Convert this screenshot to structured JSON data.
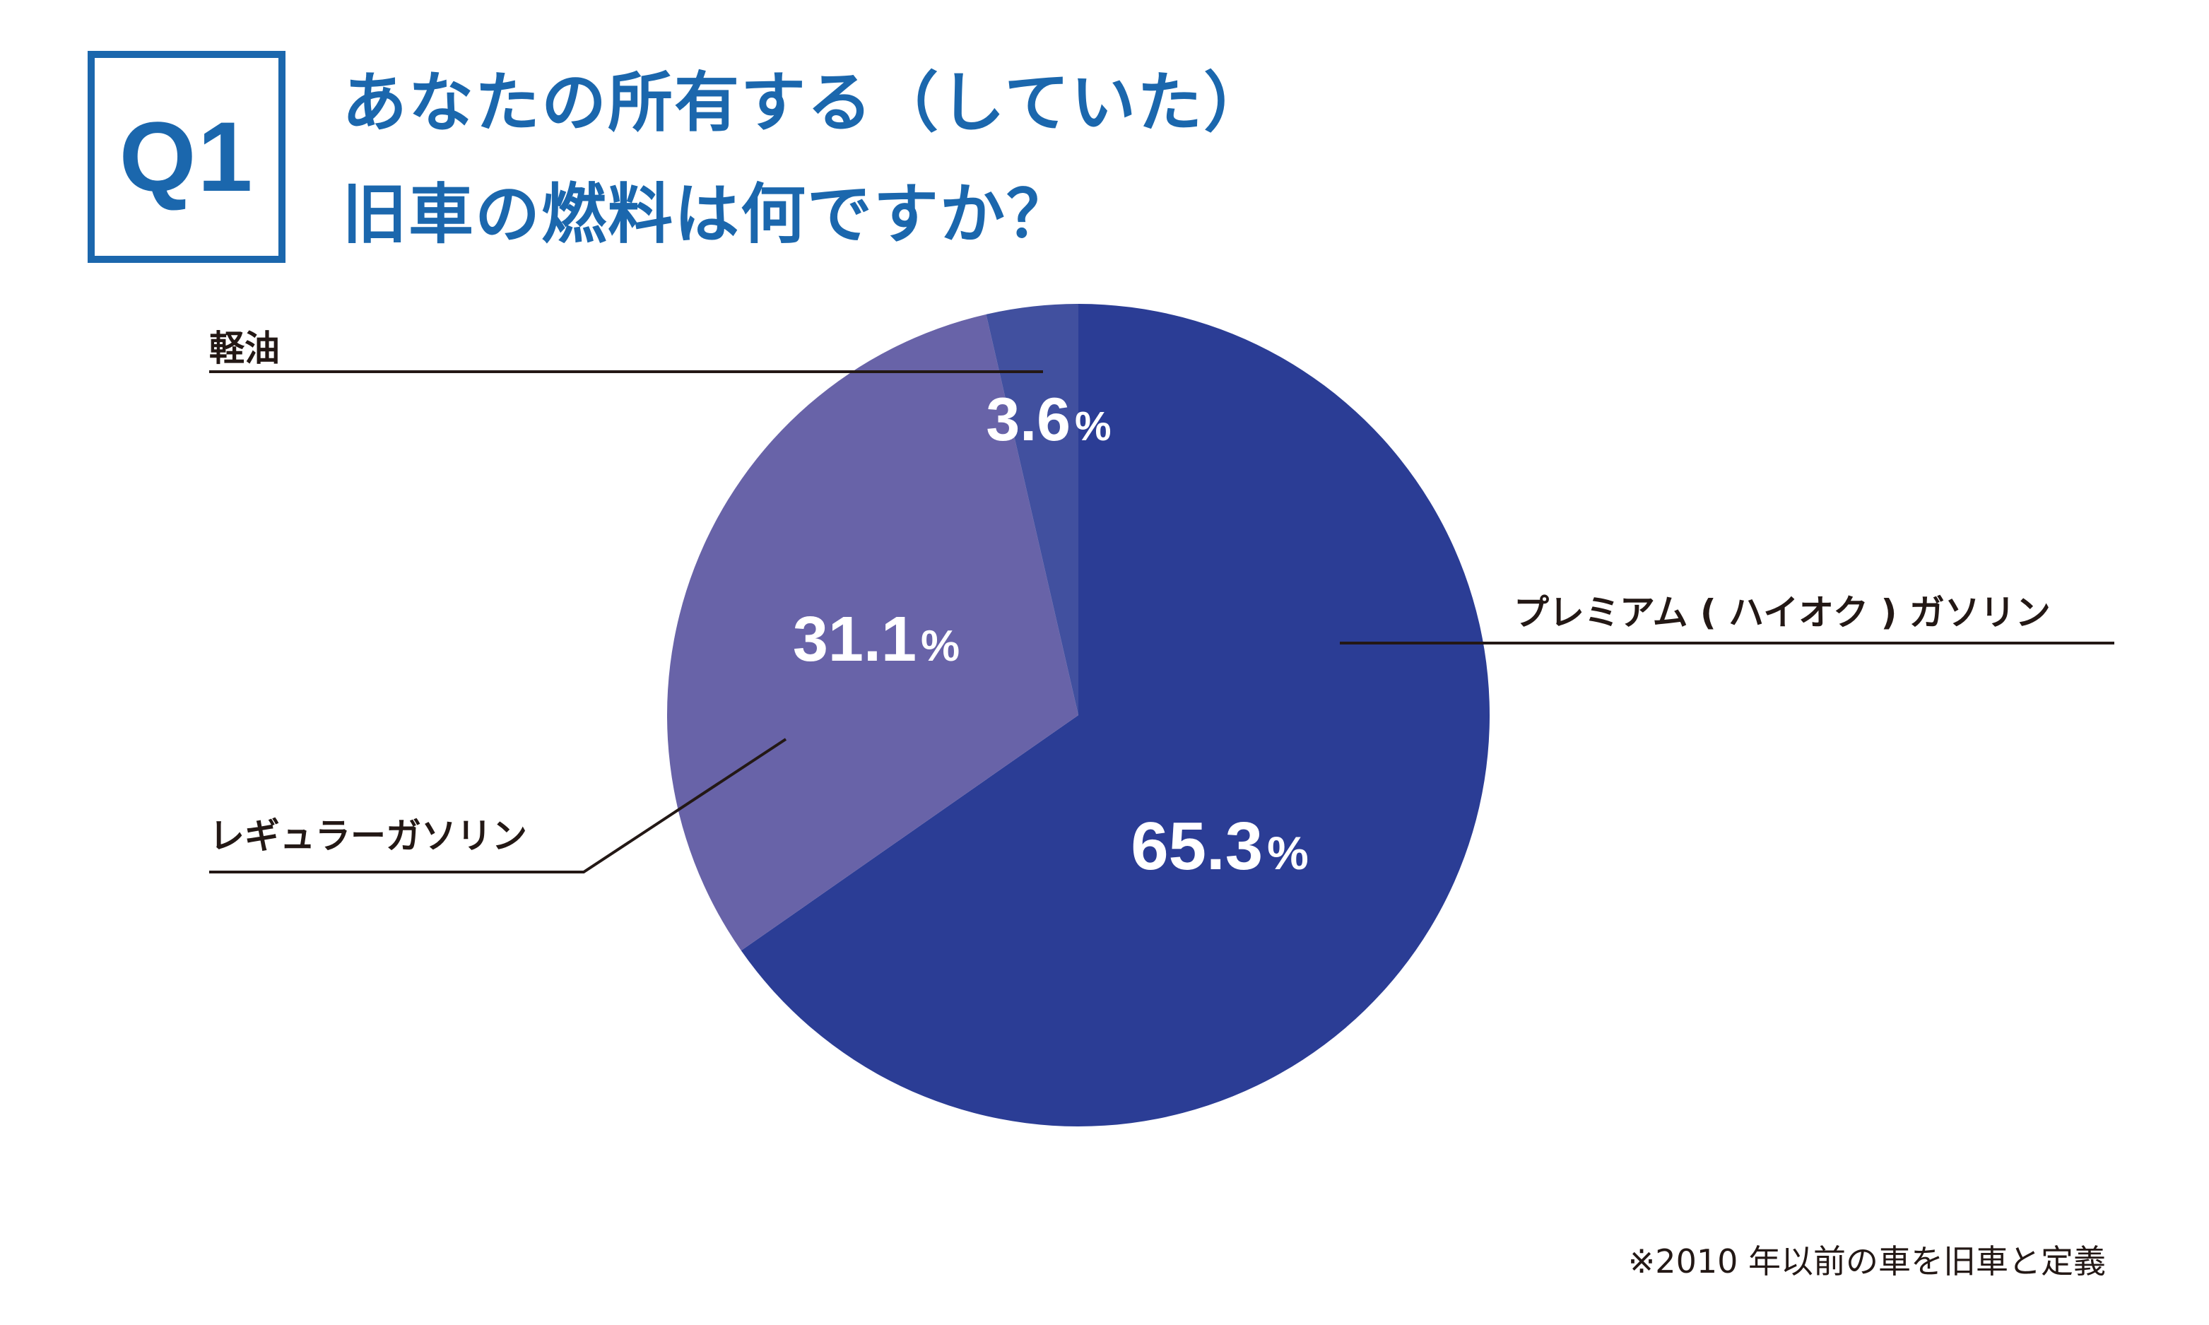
{
  "header": {
    "badge": "Q1",
    "title_line1": "あなたの所有する（していた）",
    "title_line2": "旧車の燃料は何ですか？"
  },
  "footnote": "※2010 年以前の車を旧車と定義",
  "colors": {
    "accent": "#1b67ad",
    "premium": "#2b3d95",
    "regular": "#6863a8",
    "diesel": "#41509f",
    "text": "#231815",
    "leader": "#231815"
  },
  "chart_data": {
    "type": "pie",
    "title": "あなたの所有する（していた）旧車の燃料は何ですか？",
    "start": "12 o'clock",
    "direction": "clockwise",
    "slices": [
      {
        "key": "premium",
        "label": "プレミアム ( ハイオク ) ガソリン",
        "value": 65.3,
        "display": "65.3",
        "unit": "%"
      },
      {
        "key": "regular",
        "label": "レギュラーガソリン",
        "value": 31.1,
        "display": "31.1",
        "unit": "%"
      },
      {
        "key": "diesel",
        "label": "軽油",
        "value": 3.6,
        "display": "3.6",
        "unit": "%"
      }
    ]
  }
}
